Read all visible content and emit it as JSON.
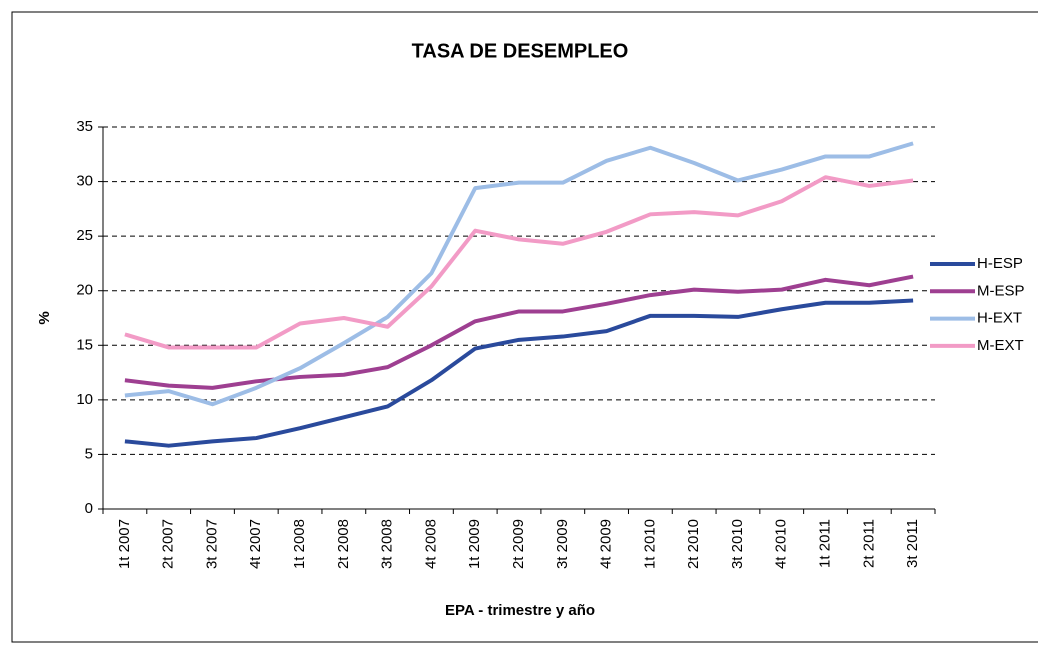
{
  "chart_data": {
    "type": "line",
    "title": "TASA DE DESEMPLEO",
    "x_label": "EPA - trimestre y año",
    "y_label": "%",
    "categories": [
      "1t 2007",
      "2t 2007",
      "3t 2007",
      "4t 2007",
      "1t 2008",
      "2t 2008",
      "3t 2008",
      "4t 2008",
      "1t 2009",
      "2t 2009",
      "3t 2009",
      "4t 2009",
      "1t 2010",
      "2t 2010",
      "3t 2010",
      "4t 2010",
      "1t 2011",
      "2t 2011",
      "3t 2011"
    ],
    "series": [
      {
        "name": "H-ESP",
        "color": "#2a4a9c",
        "values": [
          6.2,
          5.8,
          6.2,
          6.5,
          7.4,
          8.4,
          9.4,
          11.8,
          14.7,
          15.5,
          15.8,
          16.3,
          17.7,
          17.7,
          17.6,
          18.3,
          18.9,
          18.9,
          19.1
        ]
      },
      {
        "name": "M-ESP",
        "color": "#9e3f91",
        "values": [
          11.8,
          11.3,
          11.1,
          11.7,
          12.1,
          12.3,
          13.0,
          15.0,
          17.2,
          18.1,
          18.1,
          18.8,
          19.6,
          20.1,
          19.9,
          20.1,
          21.0,
          20.5,
          21.3
        ]
      },
      {
        "name": "H-EXT",
        "color": "#9dbde6",
        "values": [
          10.4,
          10.8,
          9.6,
          11.1,
          12.9,
          15.2,
          17.6,
          21.6,
          29.4,
          29.9,
          29.9,
          31.9,
          33.1,
          31.7,
          30.1,
          31.1,
          32.3,
          32.3,
          33.5
        ]
      },
      {
        "name": "M-EXT",
        "color": "#f29bc6",
        "values": [
          16.0,
          14.8,
          14.8,
          14.8,
          17.0,
          17.5,
          16.7,
          20.4,
          25.5,
          24.7,
          24.3,
          25.4,
          27.0,
          27.2,
          26.9,
          28.2,
          30.4,
          29.6,
          30.1
        ]
      }
    ],
    "ylim": [
      0,
      35
    ],
    "yticks": [
      0,
      5,
      10,
      15,
      20,
      25,
      30,
      35
    ],
    "grid": true,
    "legend": "right"
  }
}
